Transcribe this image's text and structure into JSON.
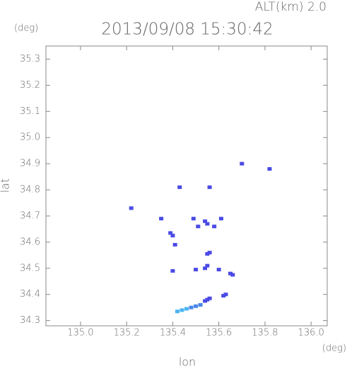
{
  "chart_data": {
    "type": "scatter",
    "title": "2013/09/08 15:30:42",
    "subtitle": "ALT(km) 2.0",
    "y_unit": "(deg)",
    "x_unit": "(deg)",
    "x_label": "lon",
    "y_label": "lat",
    "xlim": [
      134.85,
      136.07
    ],
    "ylim": [
      34.28,
      35.35
    ],
    "xticks": [
      {
        "value": 135,
        "label": "135.0"
      },
      135.2,
      135.4,
      135.6,
      135.8,
      {
        "value": 136,
        "label": "136.0"
      }
    ],
    "yticks": [
      34.3,
      34.4,
      34.5,
      34.6,
      34.7,
      34.8,
      34.9,
      {
        "value": 35,
        "label": "35.0"
      },
      35.1,
      35.2,
      35.3
    ],
    "series": [
      {
        "color": "#4a4ae6",
        "x": [
          135.7,
          135.82,
          135.56,
          135.43,
          135.22,
          135.35,
          135.39,
          135.4,
          135.49,
          135.54,
          135.58,
          135.55,
          135.61,
          135.51,
          135.41,
          135.55,
          135.56,
          135.55,
          135.54,
          135.5,
          135.4,
          135.6,
          135.65,
          135.66,
          135.63,
          135.62,
          135.55,
          135.56,
          135.54
        ],
        "values": [
          34.9,
          34.88,
          34.81,
          34.81,
          34.73,
          34.69,
          34.635,
          34.625,
          34.69,
          34.68,
          34.66,
          34.67,
          34.69,
          34.66,
          34.59,
          34.555,
          34.56,
          34.51,
          34.5,
          34.495,
          34.49,
          34.495,
          34.48,
          34.475,
          34.4,
          34.395,
          34.38,
          34.385,
          34.375
        ]
      },
      {
        "color": "#4a86ea",
        "x": [
          135.52,
          135.5,
          135.48
        ],
        "values": [
          34.36,
          34.355,
          34.35
        ]
      },
      {
        "color": "#4ab4f2",
        "x": [
          135.46,
          135.44,
          135.42
        ],
        "values": [
          34.345,
          34.34,
          34.335
        ]
      }
    ]
  }
}
